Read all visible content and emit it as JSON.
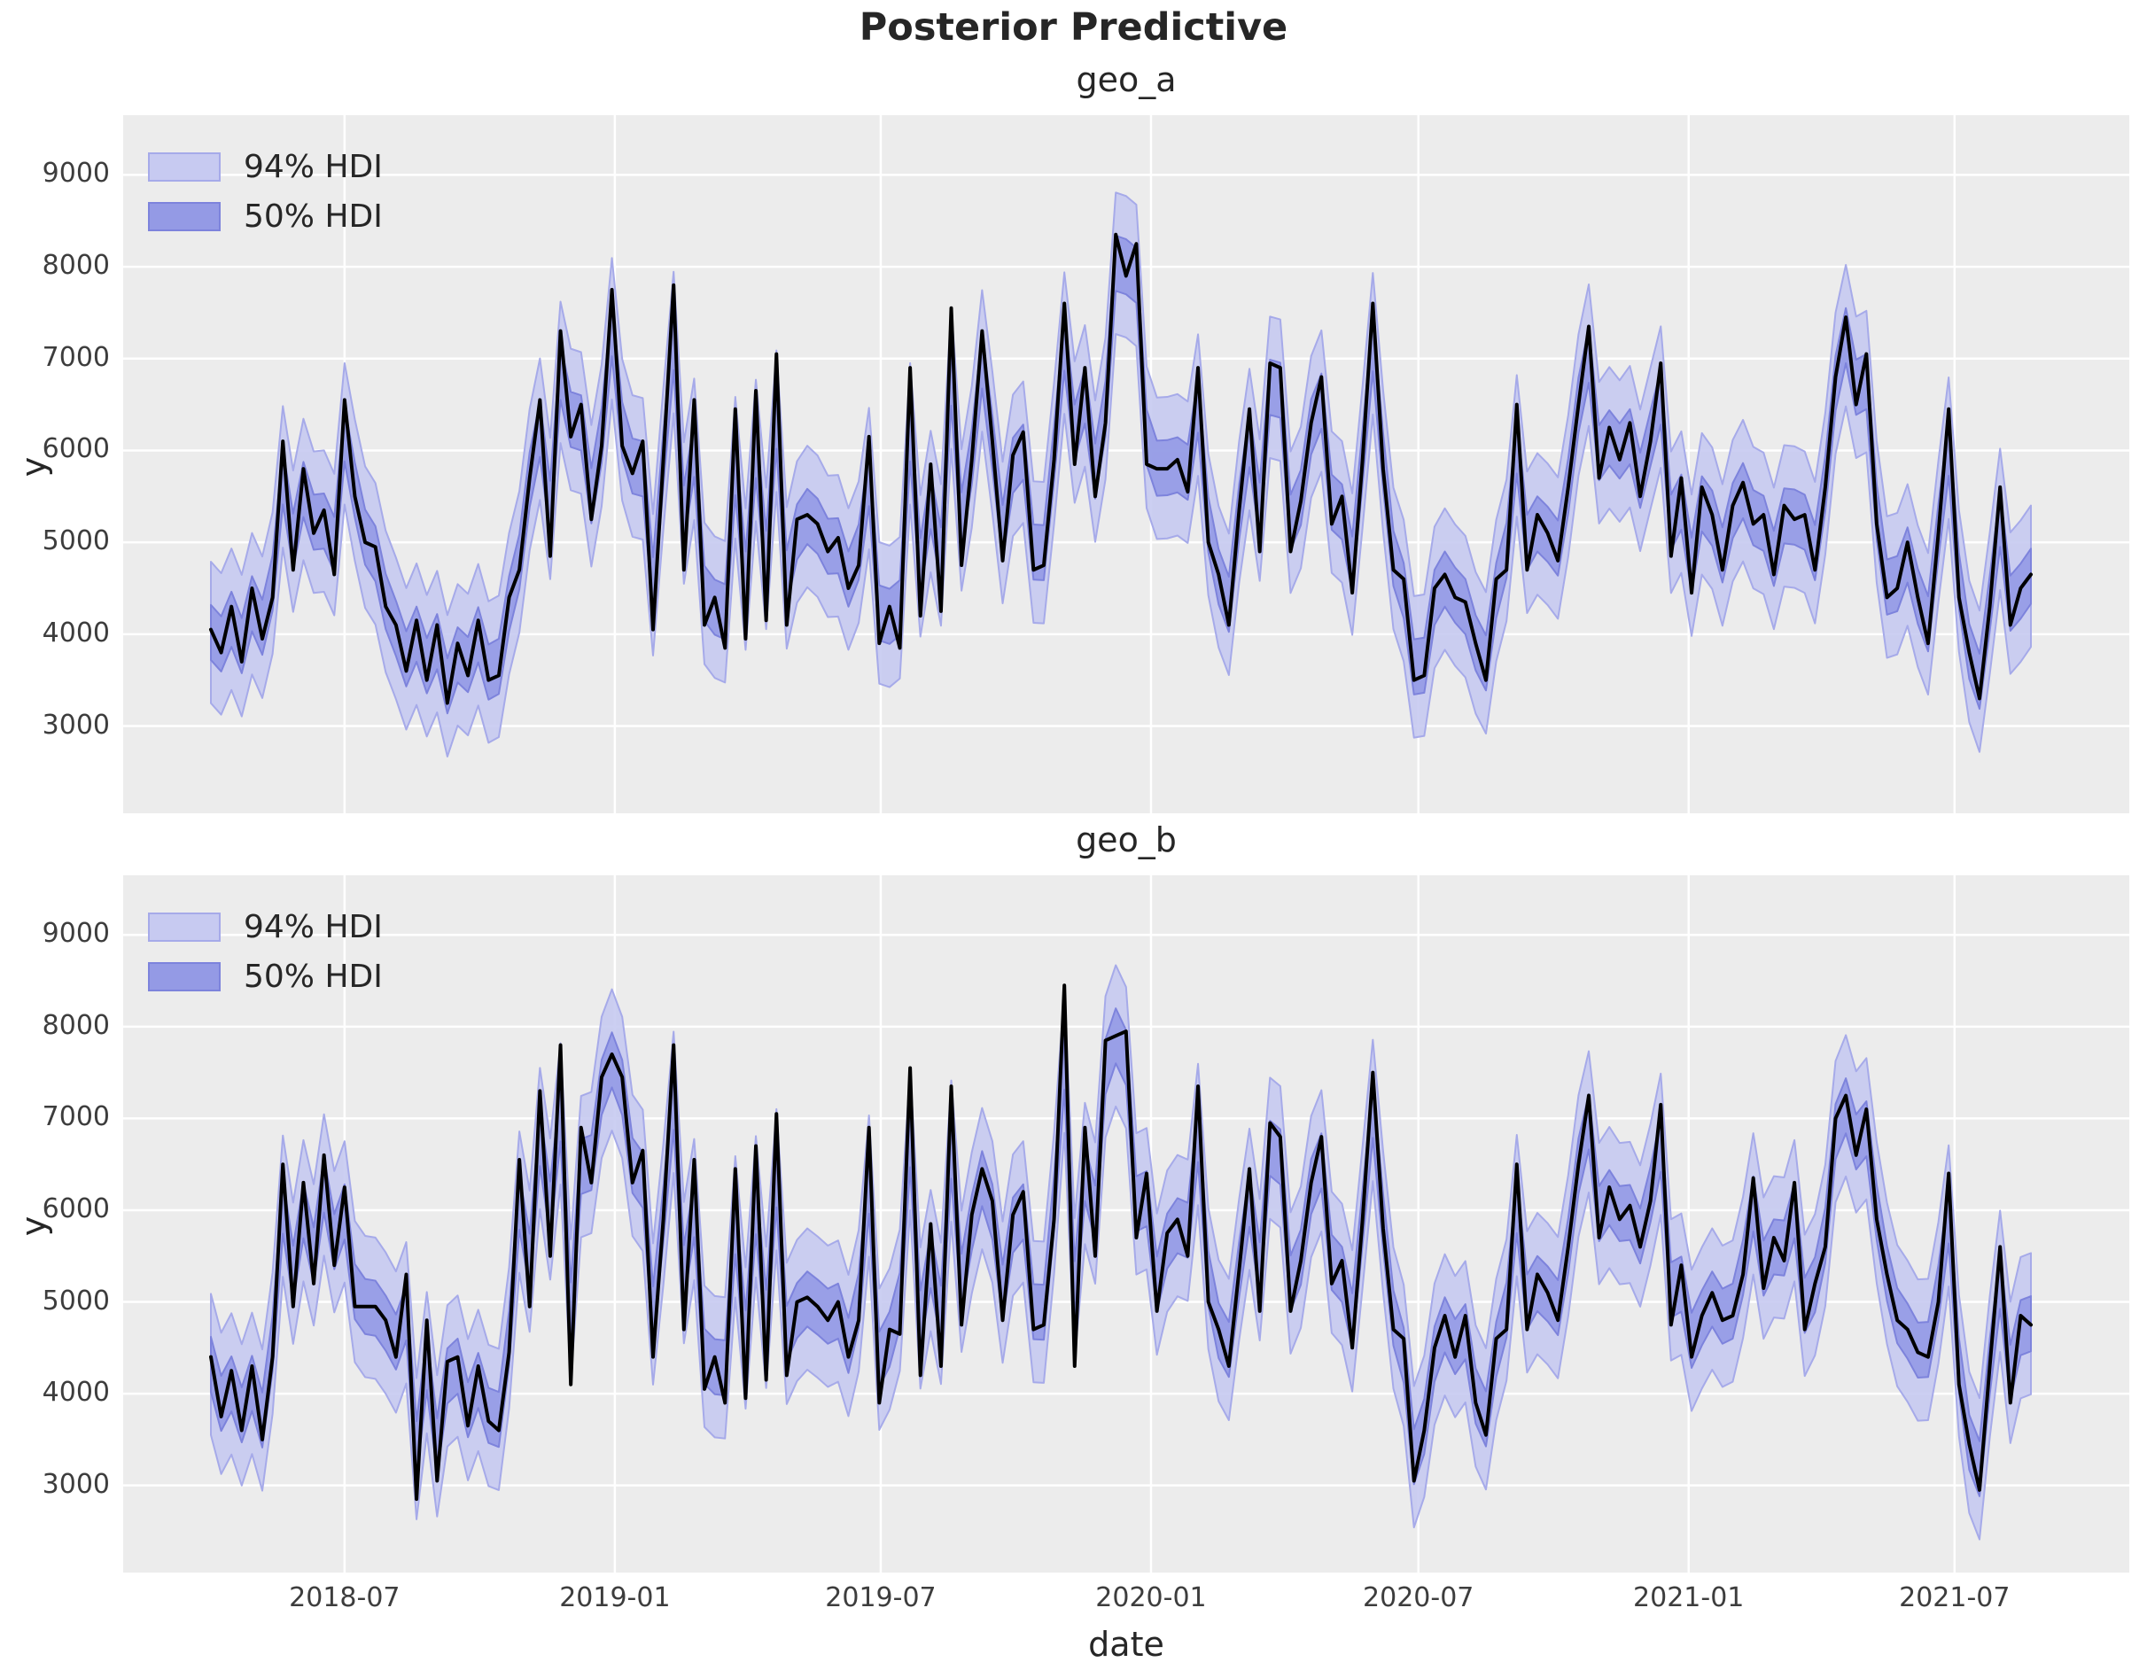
{
  "figure": {
    "title": "Posterior Predictive",
    "xlabel": "date"
  },
  "colors": {
    "figure_bg": "#ffffff",
    "plot_bg": "#ececec",
    "grid": "#ffffff",
    "hdi94_fill": "#c7caf1",
    "hdi94_edge": "#a6aae9",
    "hdi50_fill": "#949ae5",
    "hdi50_edge": "#7d83dc",
    "observed_line": "#000000",
    "tick_text": "#3d3d3d",
    "title_text": "#262626"
  },
  "legend": {
    "items": [
      {
        "label": "94% HDI",
        "swatch": "hdi94"
      },
      {
        "label": "50% HDI",
        "swatch": "hdi50"
      }
    ]
  },
  "axis": {
    "ylabel": "y",
    "yticks": [
      3000,
      4000,
      5000,
      6000,
      7000,
      8000,
      9000
    ],
    "ylim": [
      2050,
      9650
    ],
    "xticks": [
      {
        "label": "2018-07",
        "day": 91
      },
      {
        "label": "2019-01",
        "day": 275
      },
      {
        "label": "2019-07",
        "day": 456
      },
      {
        "label": "2020-01",
        "day": 640
      },
      {
        "label": "2020-07",
        "day": 822
      },
      {
        "label": "2021-01",
        "day": 1006
      },
      {
        "label": "2021-07",
        "day": 1187
      }
    ]
  },
  "chart_data": {
    "type": "line",
    "x_start": "2018-04-01",
    "x_freq": "weekly",
    "n_points": 178,
    "note": "values estimated from pixels; HDI bands approximated as offsets around a locally weighted center of y",
    "subplots": [
      {
        "title": "geo_a",
        "ylabel": "y",
        "hdi94_halfwidth": 770,
        "hdi50_halfwidth": 300,
        "y": [
          4050,
          3800,
          4300,
          3700,
          4500,
          3950,
          4400,
          6100,
          4700,
          5800,
          5100,
          5350,
          4650,
          6550,
          5500,
          5000,
          4950,
          4300,
          4100,
          3600,
          4150,
          3500,
          4100,
          3250,
          3900,
          3550,
          4150,
          3500,
          3550,
          4400,
          4700,
          5700,
          6550,
          4850,
          7300,
          6150,
          6500,
          5250,
          6050,
          7750,
          6050,
          5750,
          6100,
          4050,
          5900,
          7800,
          4700,
          6550,
          4100,
          4400,
          3850,
          6450,
          3950,
          6650,
          4150,
          7050,
          4100,
          5250,
          5300,
          5200,
          4900,
          5050,
          4500,
          4750,
          6150,
          3900,
          4300,
          3850,
          6900,
          4200,
          5850,
          4250,
          7550,
          4750,
          5900,
          7300,
          6100,
          4800,
          5950,
          6200,
          4700,
          4750,
          5900,
          7600,
          5850,
          6900,
          5500,
          6300,
          8350,
          7900,
          8250,
          5850,
          5800,
          5800,
          5900,
          5550,
          6900,
          5000,
          4650,
          4100,
          5350,
          6450,
          4900,
          6950,
          6900,
          4900,
          5450,
          6300,
          6800,
          5200,
          5500,
          4450,
          5900,
          7600,
          5800,
          4700,
          4600,
          3500,
          3550,
          4500,
          4650,
          4400,
          4350,
          3900,
          3500,
          4600,
          4700,
          6500,
          4700,
          5300,
          5100,
          4800,
          5600,
          6500,
          7350,
          5700,
          6250,
          5900,
          6300,
          5500,
          6100,
          6950,
          4850,
          5700,
          4450,
          5600,
          5300,
          4700,
          5400,
          5650,
          5200,
          5300,
          4650,
          5400,
          5250,
          5300,
          4700,
          5600,
          6800,
          7450,
          6500,
          7050,
          5200,
          4400,
          4500,
          5000,
          4400,
          3900,
          5100,
          6450,
          4400,
          3800,
          3300,
          4300,
          5600,
          4100,
          4500,
          4650
        ]
      },
      {
        "title": "geo_b",
        "ylabel": "y",
        "hdi94_halfwidth": 770,
        "hdi50_halfwidth": 300,
        "y": [
          4400,
          3750,
          4250,
          3600,
          4300,
          3500,
          4400,
          6500,
          4950,
          6300,
          5200,
          6600,
          5400,
          6250,
          4950,
          4950,
          4950,
          4800,
          4400,
          5300,
          2850,
          4800,
          3050,
          4350,
          4400,
          3650,
          4300,
          3700,
          3600,
          4450,
          6550,
          4950,
          7300,
          5500,
          7800,
          4100,
          6900,
          6300,
          7450,
          7700,
          7450,
          6300,
          6650,
          4400,
          5900,
          7800,
          4700,
          6550,
          4050,
          4400,
          3900,
          6450,
          3950,
          6700,
          4150,
          7050,
          4200,
          5000,
          5050,
          4950,
          4800,
          5000,
          4400,
          4800,
          6900,
          3900,
          4700,
          4650,
          7550,
          4200,
          5850,
          4300,
          7350,
          4750,
          5950,
          6450,
          6100,
          4800,
          5950,
          6200,
          4700,
          4750,
          5900,
          8450,
          4300,
          6900,
          5500,
          7850,
          7900,
          7950,
          5700,
          6400,
          4900,
          5750,
          5900,
          5500,
          7350,
          5000,
          4700,
          4300,
          5350,
          6450,
          4900,
          6950,
          6800,
          4900,
          5450,
          6300,
          6800,
          5200,
          5450,
          4500,
          5900,
          7500,
          5800,
          4700,
          4600,
          3050,
          3600,
          4500,
          4850,
          4400,
          4850,
          3900,
          3550,
          4600,
          4700,
          6500,
          4700,
          5300,
          5100,
          4800,
          5600,
          6500,
          7250,
          5700,
          6250,
          5900,
          6050,
          5600,
          6100,
          7150,
          4750,
          5400,
          4400,
          4850,
          5100,
          4800,
          4850,
          5300,
          6350,
          5150,
          5700,
          5450,
          6300,
          4700,
          5200,
          5600,
          7000,
          7250,
          6600,
          7100,
          5900,
          5300,
          4800,
          4700,
          4450,
          4400,
          5000,
          6400,
          4100,
          3450,
          2950,
          4300,
          5600,
          3900,
          4850,
          4750
        ]
      }
    ]
  }
}
